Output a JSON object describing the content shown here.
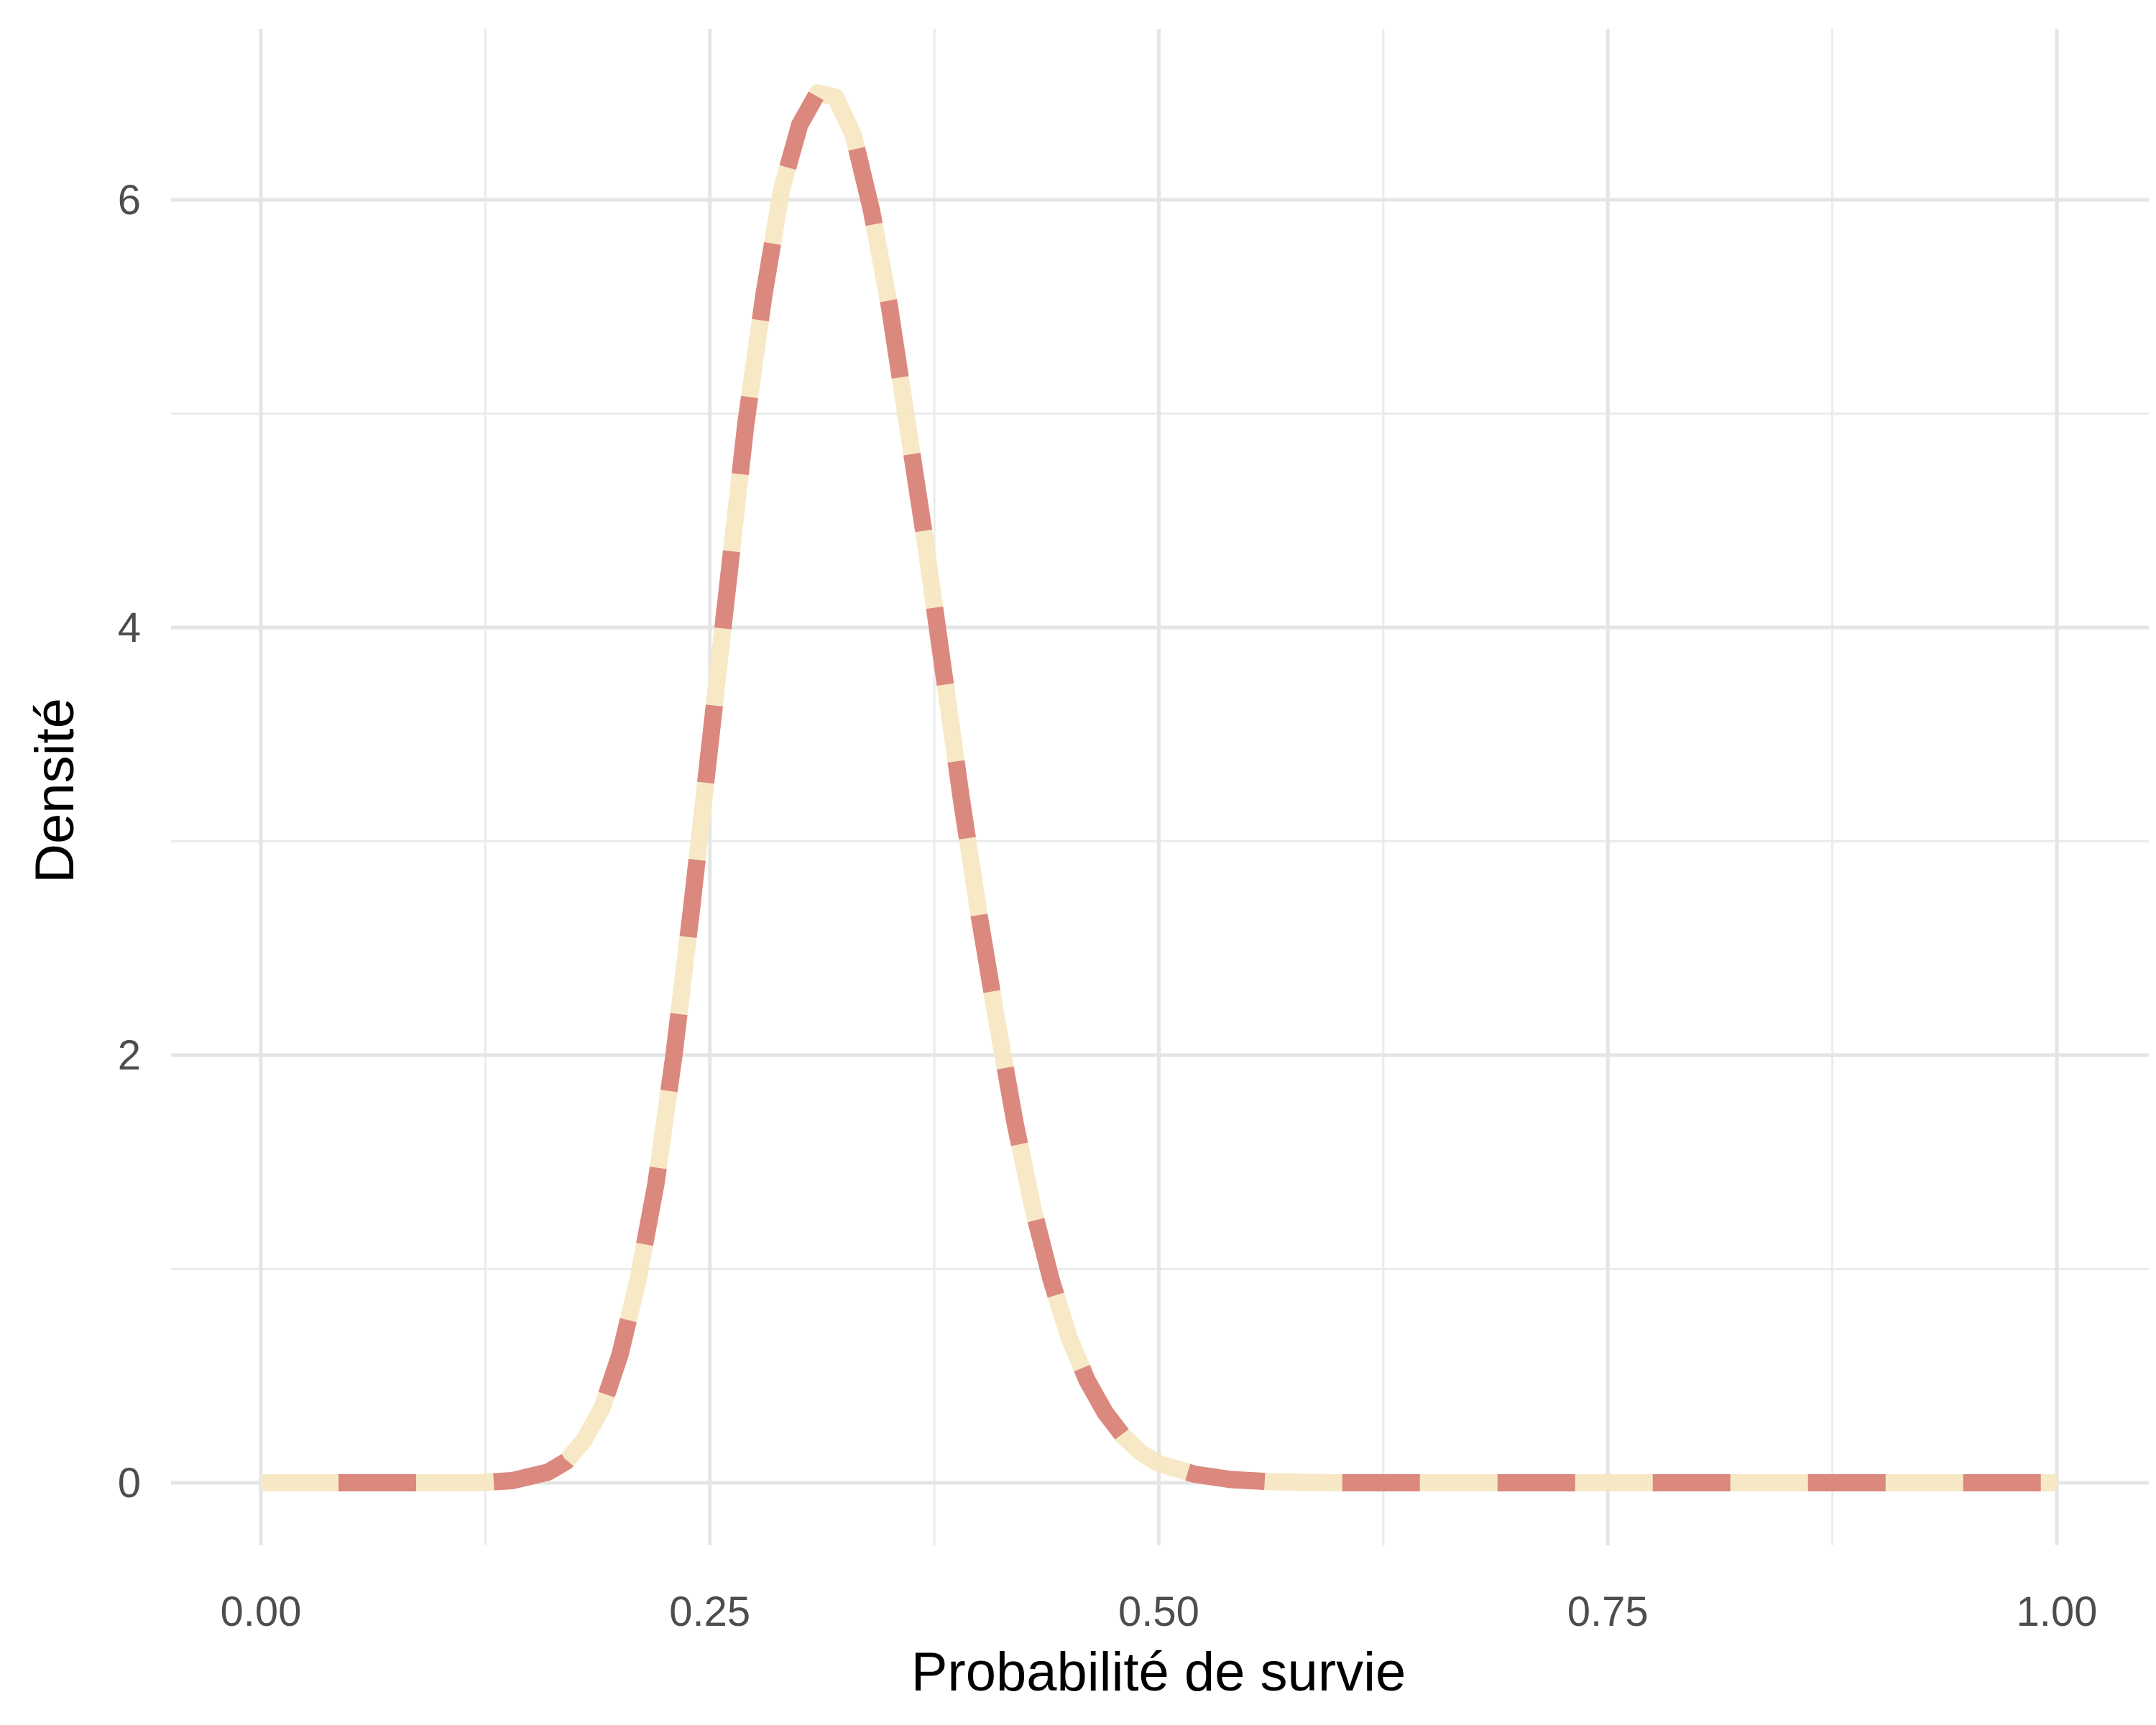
{
  "chart_data": {
    "type": "line",
    "title": "",
    "xlabel": "Probabilité de survie",
    "ylabel": "Densité",
    "xlim": [
      0,
      1
    ],
    "ylim": [
      0,
      6.5
    ],
    "x_ticks": [
      0,
      0.25,
      0.5,
      0.75,
      1
    ],
    "x_tick_labels": [
      "0.00",
      "0.25",
      "0.50",
      "0.75",
      "1.00"
    ],
    "y_ticks": [
      0,
      2,
      4,
      6
    ],
    "y_tick_labels": [
      "0",
      "2",
      "4",
      "6"
    ],
    "grid": true,
    "legend": "none",
    "line_style": "dashed, two alternating colors",
    "colors": {
      "dash_a": "#f7e8c3",
      "dash_b": "#d9837b"
    },
    "series": [
      {
        "x": [
          0.0,
          0.05,
          0.1,
          0.12,
          0.14,
          0.15,
          0.16,
          0.17,
          0.18,
          0.19,
          0.2,
          0.21,
          0.22,
          0.23,
          0.24,
          0.25,
          0.26,
          0.27,
          0.28,
          0.29,
          0.3,
          0.31,
          0.32,
          0.33,
          0.34,
          0.35,
          0.36,
          0.37,
          0.38,
          0.39,
          0.4,
          0.41,
          0.42,
          0.43,
          0.44,
          0.45,
          0.46,
          0.47,
          0.48,
          0.49,
          0.5,
          0.52,
          0.54,
          0.56,
          0.58,
          0.6,
          0.65,
          0.7,
          0.8,
          0.9,
          1.0
        ],
        "y": [
          0.0,
          0.0,
          0.0,
          0.0,
          0.01,
          0.03,
          0.05,
          0.1,
          0.2,
          0.35,
          0.6,
          0.95,
          1.4,
          2.0,
          2.7,
          3.45,
          4.2,
          4.95,
          5.55,
          6.05,
          6.35,
          6.5,
          6.48,
          6.3,
          5.95,
          5.5,
          4.95,
          4.4,
          3.8,
          3.2,
          2.65,
          2.15,
          1.68,
          1.28,
          0.95,
          0.68,
          0.48,
          0.33,
          0.22,
          0.14,
          0.09,
          0.04,
          0.015,
          0.006,
          0.002,
          0.0,
          0.0,
          0.0,
          0.0,
          0.0,
          0.0
        ]
      }
    ]
  }
}
